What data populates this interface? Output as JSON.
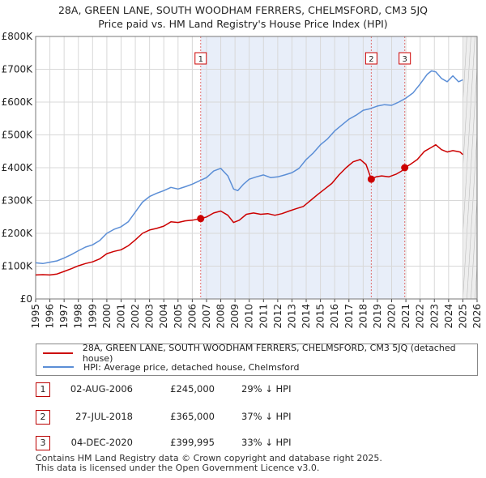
{
  "chart_data": {
    "type": "line",
    "title": "28A, GREEN LANE, SOUTH WOODHAM FERRERS, CHELMSFORD, CM3 5JQ",
    "subtitle": "Price paid vs. HM Land Registry's House Price Index (HPI)",
    "xlabel": "",
    "ylabel": "",
    "xlim": [
      1995,
      2026
    ],
    "ylim": [
      0,
      800000
    ],
    "x_ticks": [
      "1995",
      "1996",
      "1997",
      "1998",
      "1999",
      "2000",
      "2001",
      "2002",
      "2003",
      "2004",
      "2005",
      "2006",
      "2007",
      "2008",
      "2009",
      "2010",
      "2011",
      "2012",
      "2013",
      "2014",
      "2015",
      "2016",
      "2017",
      "2018",
      "2019",
      "2020",
      "2021",
      "2022",
      "2023",
      "2024",
      "2025",
      "2026"
    ],
    "y_ticks": [
      {
        "value": 0,
        "label": "£0"
      },
      {
        "value": 100000,
        "label": "£100K"
      },
      {
        "value": 200000,
        "label": "£200K"
      },
      {
        "value": 300000,
        "label": "£300K"
      },
      {
        "value": 400000,
        "label": "£400K"
      },
      {
        "value": 500000,
        "label": "£500K"
      },
      {
        "value": 600000,
        "label": "£600K"
      },
      {
        "value": 700000,
        "label": "£700K"
      },
      {
        "value": 800000,
        "label": "£800K"
      }
    ],
    "grid": true,
    "series": [
      {
        "name": "28A, GREEN LANE, SOUTH WOODHAM FERRERS, CHELMSFORD, CM3 5JQ (detached house)",
        "color": "#cc0000",
        "x": [
          1995.0,
          1995.5,
          1996.0,
          1996.5,
          1997.0,
          1997.5,
          1998.0,
          1998.5,
          1999.0,
          1999.5,
          2000.0,
          2000.5,
          2001.0,
          2001.5,
          2002.0,
          2002.5,
          2003.0,
          2003.5,
          2004.0,
          2004.5,
          2005.0,
          2005.5,
          2006.0,
          2006.59,
          2007.0,
          2007.5,
          2008.0,
          2008.5,
          2008.9,
          2009.3,
          2009.8,
          2010.3,
          2010.8,
          2011.3,
          2011.8,
          2012.3,
          2012.8,
          2013.3,
          2013.8,
          2014.3,
          2014.8,
          2015.3,
          2015.8,
          2016.3,
          2016.8,
          2017.3,
          2017.8,
          2018.2,
          2018.57,
          2018.9,
          2019.3,
          2019.8,
          2020.3,
          2020.7,
          2020.92,
          2021.3,
          2021.8,
          2022.3,
          2022.8,
          2023.1,
          2023.5,
          2023.9,
          2024.3,
          2024.8,
          2025.0
        ],
        "values": [
          73000,
          74000,
          73000,
          76000,
          84000,
          92000,
          101000,
          108000,
          113000,
          122000,
          138000,
          145000,
          150000,
          162000,
          180000,
          200000,
          210000,
          215000,
          222000,
          235000,
          233000,
          238000,
          240000,
          245000,
          250000,
          262000,
          268000,
          255000,
          233000,
          240000,
          258000,
          262000,
          258000,
          260000,
          255000,
          260000,
          268000,
          275000,
          282000,
          300000,
          318000,
          335000,
          352000,
          378000,
          400000,
          418000,
          425000,
          410000,
          365000,
          372000,
          375000,
          372000,
          380000,
          390000,
          399995,
          410000,
          425000,
          450000,
          462000,
          470000,
          455000,
          448000,
          452000,
          448000,
          440000
        ]
      },
      {
        "name": "HPI: Average price, detached house, Chelmsford",
        "color": "#5b8ed6",
        "x": [
          1995.0,
          1995.5,
          1996.0,
          1996.5,
          1997.0,
          1997.5,
          1998.0,
          1998.5,
          1999.0,
          1999.5,
          2000.0,
          2000.5,
          2001.0,
          2001.5,
          2002.0,
          2002.5,
          2003.0,
          2003.5,
          2004.0,
          2004.5,
          2005.0,
          2005.5,
          2006.0,
          2006.5,
          2007.0,
          2007.5,
          2008.0,
          2008.5,
          2008.9,
          2009.2,
          2009.6,
          2010.0,
          2010.5,
          2011.0,
          2011.5,
          2012.0,
          2012.5,
          2013.0,
          2013.5,
          2014.0,
          2014.5,
          2015.0,
          2015.5,
          2016.0,
          2016.5,
          2017.0,
          2017.5,
          2018.0,
          2018.5,
          2019.0,
          2019.5,
          2020.0,
          2020.5,
          2021.0,
          2021.5,
          2022.0,
          2022.5,
          2022.8,
          2023.1,
          2023.5,
          2023.9,
          2024.3,
          2024.7,
          2025.0
        ],
        "values": [
          110000,
          108000,
          112000,
          116000,
          125000,
          135000,
          147000,
          158000,
          165000,
          178000,
          200000,
          212000,
          220000,
          235000,
          265000,
          295000,
          312000,
          322000,
          330000,
          340000,
          335000,
          342000,
          350000,
          360000,
          370000,
          390000,
          398000,
          375000,
          335000,
          330000,
          350000,
          365000,
          372000,
          378000,
          370000,
          372000,
          378000,
          385000,
          398000,
          425000,
          445000,
          470000,
          488000,
          512000,
          530000,
          548000,
          560000,
          575000,
          580000,
          588000,
          592000,
          590000,
          600000,
          612000,
          628000,
          655000,
          685000,
          695000,
          692000,
          672000,
          662000,
          680000,
          662000,
          668000
        ]
      }
    ],
    "sales": [
      {
        "marker": "1",
        "year": 2006.59,
        "date": "02-AUG-2006",
        "price_value": 245000,
        "price": "£245,000",
        "hpi": "29% ↓ HPI"
      },
      {
        "marker": "2",
        "year": 2018.57,
        "date": "27-JUL-2018",
        "price_value": 365000,
        "price": "£365,000",
        "hpi": "37% ↓ HPI"
      },
      {
        "marker": "3",
        "year": 2020.92,
        "date": "04-DEC-2020",
        "price_value": 399995,
        "price": "£399,995",
        "hpi": "33% ↓ HPI"
      }
    ],
    "forecast_from": 2025.0
  },
  "legend": {
    "property_label": "28A, GREEN LANE, SOUTH WOODHAM FERRERS, CHELMSFORD, CM3 5JQ (detached house)",
    "hpi_label": "HPI: Average price, detached house, Chelmsford"
  },
  "footer": {
    "line1": "Contains HM Land Registry data © Crown copyright and database right 2025.",
    "line2": "This data is licensed under the Open Government Licence v3.0."
  }
}
